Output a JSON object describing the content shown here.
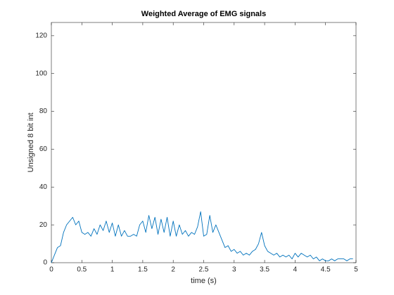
{
  "chart_data": {
    "type": "line",
    "title": "Weighted Average of EMG signals",
    "x_label": "time (s)",
    "y_label": "Unsigned 8 bit int",
    "color": "#0072bd",
    "x": [
      0,
      0.05,
      0.1,
      0.15,
      0.2,
      0.25,
      0.3,
      0.35,
      0.4,
      0.45,
      0.5,
      0.55,
      0.6,
      0.65,
      0.7,
      0.75,
      0.8,
      0.85,
      0.9,
      0.95,
      1,
      1.05,
      1.1,
      1.15,
      1.2,
      1.25,
      1.3,
      1.35,
      1.4,
      1.45,
      1.5,
      1.55,
      1.6,
      1.65,
      1.7,
      1.75,
      1.8,
      1.85,
      1.9,
      1.95,
      2,
      2.05,
      2.1,
      2.15,
      2.2,
      2.25,
      2.3,
      2.35,
      2.4,
      2.45,
      2.5,
      2.55,
      2.6,
      2.65,
      2.7,
      2.75,
      2.8,
      2.85,
      2.9,
      2.95,
      3,
      3.05,
      3.1,
      3.15,
      3.2,
      3.25,
      3.3,
      3.35,
      3.4,
      3.45,
      3.5,
      3.55,
      3.6,
      3.65,
      3.7,
      3.75,
      3.8,
      3.85,
      3.9,
      3.95,
      4,
      4.05,
      4.1,
      4.15,
      4.2,
      4.25,
      4.3,
      4.35,
      4.4,
      4.45,
      4.5,
      4.55,
      4.6,
      4.65,
      4.7,
      4.75,
      4.8,
      4.85,
      4.9,
      4.95
    ],
    "values": [
      0,
      4,
      8,
      9,
      16,
      20,
      22,
      24,
      20,
      22,
      16,
      15,
      16,
      14,
      18,
      15,
      20,
      17,
      22,
      16,
      21,
      14,
      20,
      14,
      17,
      14,
      14,
      15,
      14,
      20,
      22,
      16,
      25,
      18,
      24,
      15,
      23,
      16,
      24,
      14,
      22,
      14,
      20,
      15,
      17,
      14,
      16,
      15,
      19,
      27,
      14,
      15,
      25,
      16,
      20,
      16,
      12,
      8,
      9,
      6,
      7,
      5,
      6,
      4,
      5,
      4,
      6,
      7,
      10,
      16,
      9,
      6,
      5,
      4,
      5,
      3,
      4,
      3,
      4,
      2,
      5,
      3,
      5,
      4,
      3,
      4,
      2,
      3,
      1,
      2,
      1,
      1,
      2,
      1,
      2,
      2,
      2,
      1,
      2,
      2
    ],
    "xlim": [
      0,
      5
    ],
    "ylim": [
      0,
      127
    ],
    "xticks": [
      0,
      0.5,
      1,
      1.5,
      2,
      2.5,
      3,
      3.5,
      4,
      4.5,
      5
    ],
    "yticks": [
      0,
      20,
      40,
      60,
      80,
      100,
      120
    ],
    "grid": false
  }
}
